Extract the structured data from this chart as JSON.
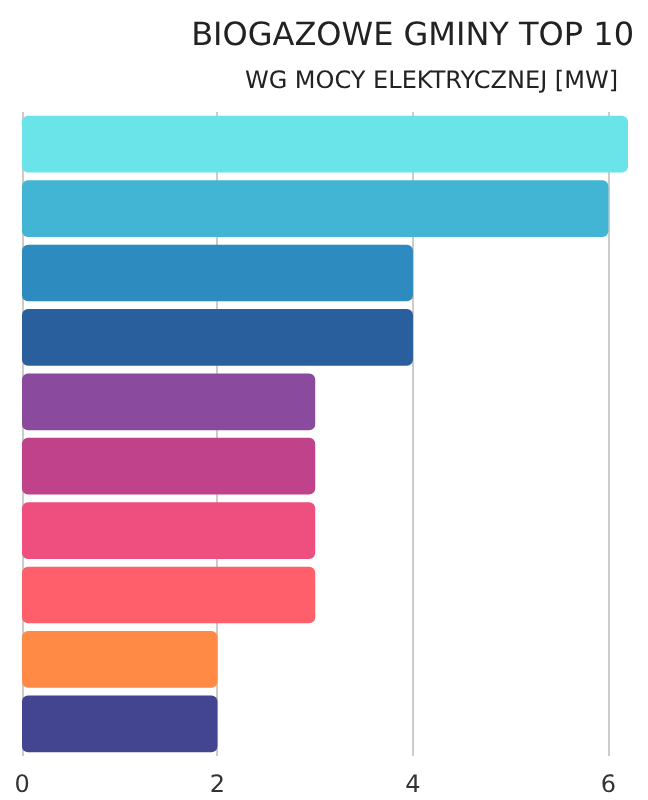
{
  "chart_data": {
    "type": "bar",
    "orientation": "horizontal",
    "title": "BIOGAZOWE GMINY TOP 10",
    "subtitle": "WG MOCY ELEKTRYCZNEJ [MW]",
    "categories": [
      null,
      null,
      null,
      null,
      null,
      null,
      null,
      null,
      null,
      null
    ],
    "values": [
      6.2,
      6,
      4,
      4,
      3,
      3,
      3,
      3,
      2,
      2
    ],
    "colors": [
      "#6ae4e8",
      "#41b5d3",
      "#2e8bc0",
      "#2a5f9e",
      "#8a4a9e",
      "#c0428a",
      "#ef4f7f",
      "#ff5f6b",
      "#ff8a45",
      "#434590"
    ],
    "xlim": [
      0,
      6.2
    ],
    "xticks": [
      0,
      2,
      4,
      6
    ],
    "grid": "x"
  }
}
